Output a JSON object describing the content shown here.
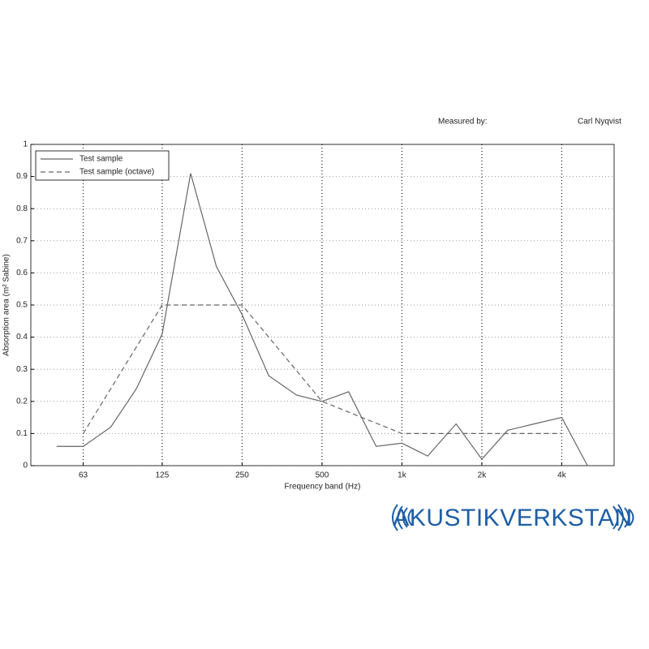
{
  "header": {
    "measured_by_label": "Measured by:",
    "measured_by": "Carl Nyqvist"
  },
  "logo": "AKUSTIKVERKSTAN",
  "chart_data": {
    "type": "line",
    "xlabel": "Frequency band (Hz)",
    "ylabel": "Absorption area (m² Sabine)",
    "xscale": "log",
    "xlim": [
      40,
      6300
    ],
    "ylim": [
      0,
      1
    ],
    "xticks": [
      63,
      125,
      250,
      500,
      {
        "value": 1000,
        "label": "1k"
      },
      {
        "value": 2000,
        "label": "2k"
      },
      {
        "value": 4000,
        "label": "4k"
      }
    ],
    "yticks": [
      0,
      0.1,
      0.2,
      0.3,
      0.4,
      0.5,
      0.6,
      0.7,
      0.8,
      0.9,
      1
    ],
    "grid": true,
    "legend": "upper left",
    "series": [
      {
        "name": "Test sample",
        "color": "#666666",
        "linestyle": "solid",
        "x": [
          50,
          63,
          80,
          100,
          125,
          160,
          200,
          250,
          315,
          400,
          500,
          630,
          800,
          1000,
          1250,
          1600,
          2000,
          2500,
          3150,
          4000,
          5000
        ],
        "values": [
          0.06,
          0.06,
          0.12,
          0.24,
          0.41,
          0.91,
          0.62,
          0.47,
          0.28,
          0.22,
          0.2,
          0.23,
          0.06,
          0.07,
          0.03,
          0.13,
          0.02,
          0.11,
          0.13,
          0.15,
          0
        ]
      },
      {
        "name": "Test sample (octave)",
        "color": "#666666",
        "linestyle": "dashed",
        "x": [
          63,
          125,
          250,
          500,
          1000,
          2000,
          4000
        ],
        "values": [
          0.1,
          0.5,
          0.5,
          0.2,
          0.1,
          0.1,
          0.1
        ]
      }
    ]
  }
}
